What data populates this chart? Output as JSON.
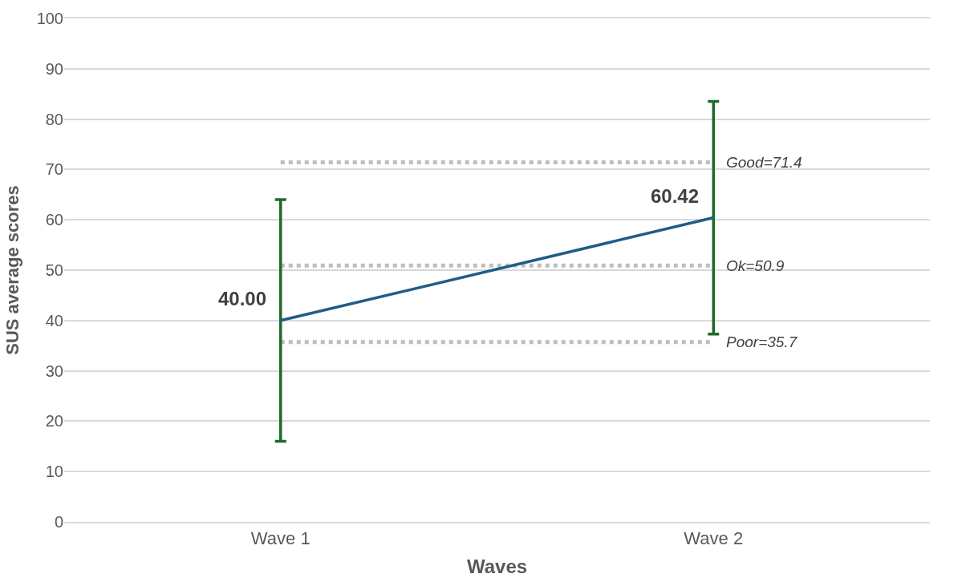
{
  "chart_data": {
    "type": "line",
    "xlabel": "Waves",
    "ylabel": "SUS average scores",
    "categories": [
      "Wave 1",
      "Wave 2"
    ],
    "series": [
      {
        "color": "#1f5c87",
        "values": [
          40.0,
          60.42
        ],
        "value_labels": [
          "40.00",
          "60.42"
        ],
        "errors": [
          24,
          23.1
        ]
      }
    ],
    "ylim": [
      0,
      100
    ],
    "yticks": [
      0,
      10,
      20,
      30,
      40,
      50,
      60,
      70,
      80,
      90,
      100
    ],
    "grid": "y",
    "marker": "none",
    "line_style": "solid",
    "ref_lines": [
      {
        "axis": "y",
        "value": 71.4,
        "label": "Good=71.4",
        "color": "#bfbfbf",
        "line_style": "dotted"
      },
      {
        "axis": "y",
        "value": 50.9,
        "label": "Ok=50.9",
        "color": "#bfbfbf",
        "line_style": "dotted"
      },
      {
        "axis": "y",
        "value": 35.7,
        "label": "Poor=35.7",
        "color": "#bfbfbf",
        "line_style": "dotted"
      }
    ]
  }
}
